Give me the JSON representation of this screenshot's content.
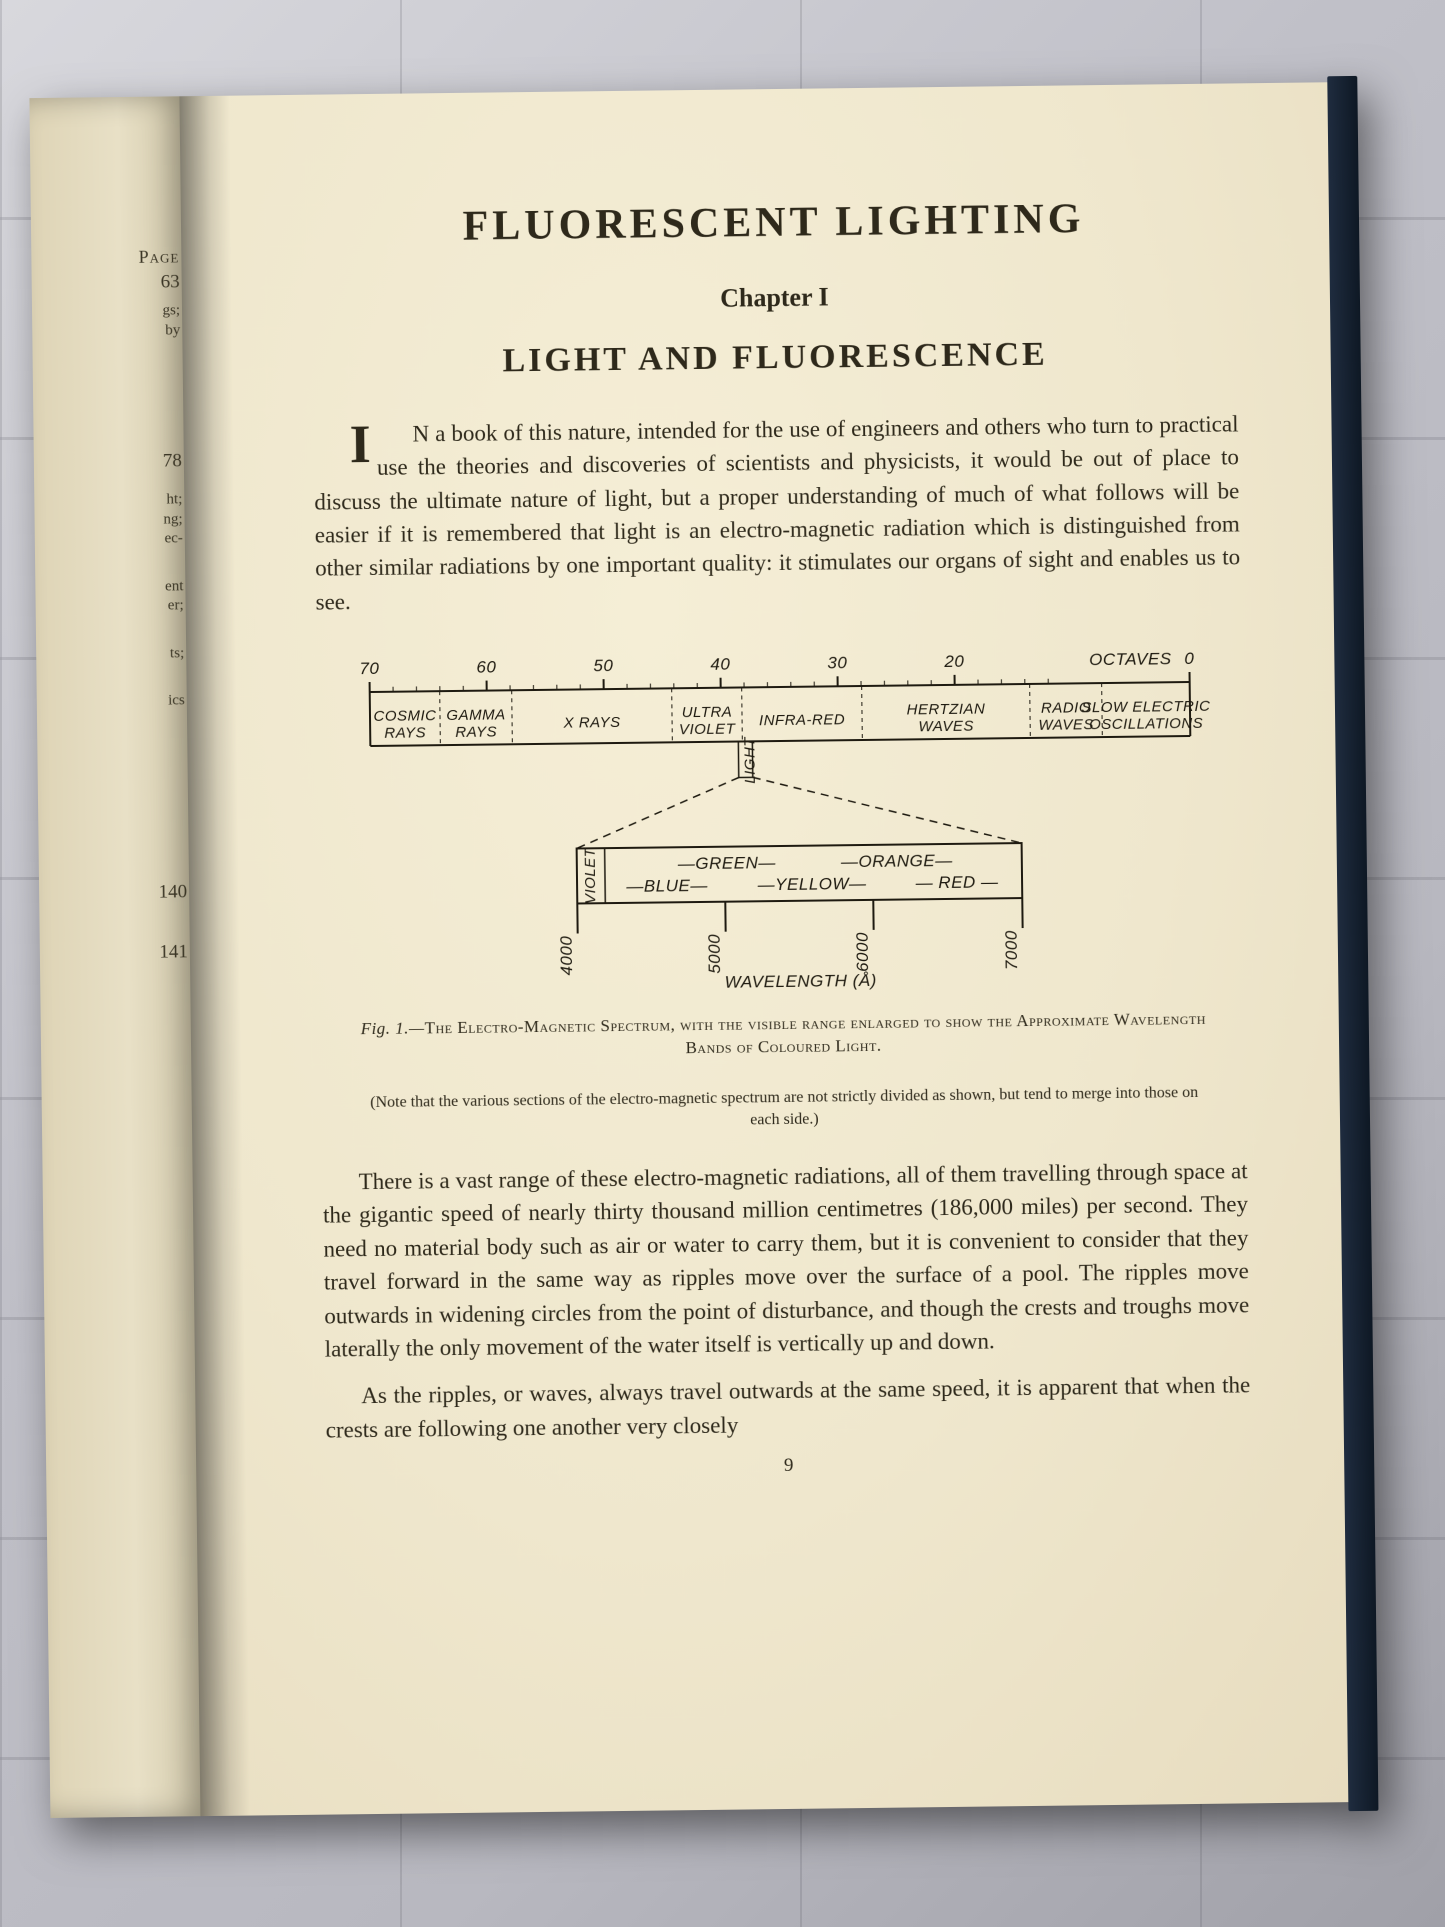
{
  "left_page": {
    "page_label": "Page",
    "entries": [
      {
        "num": "63",
        "frag": ""
      },
      {
        "num": "",
        "frag": "gs;\nby"
      },
      {
        "num": "78",
        "frag": ""
      },
      {
        "num": "",
        "frag": "ht;\nng;\nec-"
      },
      {
        "num": "",
        "frag": "ent\ner;"
      },
      {
        "num": "",
        "frag": "ts;"
      },
      {
        "num": "",
        "frag": "ics"
      },
      {
        "num": "140",
        "frag": ""
      },
      {
        "num": "141",
        "frag": ""
      }
    ]
  },
  "title": "FLUORESCENT  LIGHTING",
  "chapter": "Chapter I",
  "subtitle": "LIGHT  AND  FLUORESCENCE",
  "para1_drop": "I",
  "para1": "N a book of this nature, intended for the use of engineers and others who turn to practical use the theories and discoveries of scientists and physicists, it would be out of place to discuss the ultimate nature of light, but a proper understanding of much of what follows will be easier if it is remembered that light is an electro-magnetic radiation which is distinguished from other similar radiations by one important quality: it stimulates our organs of sight and enables us to see.",
  "figure": {
    "octaves": [
      "70",
      "60",
      "50",
      "40",
      "30",
      "20",
      "OCTAVES",
      "0"
    ],
    "bands": [
      {
        "label": "COSMIC RAYS"
      },
      {
        "label": "GAMMA RAYS"
      },
      {
        "label": "X RAYS"
      },
      {
        "label": "ULTRA VIOLET"
      },
      {
        "label": "INFRA-RED"
      },
      {
        "label": "HERTZIAN WAVES"
      },
      {
        "label": "RADIO WAVES"
      },
      {
        "label": "SLOW ELECTRIC OSCILLATIONS"
      }
    ],
    "light_tag": "LIGHT",
    "visible": {
      "ticks": [
        "4000",
        "5000",
        "6000",
        "7000"
      ],
      "colors_top": [
        "GREEN",
        "ORANGE"
      ],
      "colors_bot": [
        "BLUE",
        "YELLOW",
        "RED"
      ],
      "violet": "VIOLET",
      "axis": "WAVELENGTH  (Å)"
    },
    "stroke": "#1e1a10",
    "stroke_w": 2
  },
  "caption_lead": "Fig. 1.—",
  "caption_main": "The Electro-Magnetic Spectrum, with the visible range enlarged to show the Approximate Wavelength Bands of Coloured Light.",
  "caption_note": "(Note that the various sections of the electro-magnetic spectrum are not strictly divided as shown, but tend to merge into those on each side.)",
  "para2": "There is a vast range of these electro-magnetic radiations, all of them travelling through space at the gigantic speed of nearly thirty thousand million centimetres (186,000 miles) per second.  They need no material body such as air or water to carry them, but it is convenient to consider that they travel forward in the same way as ripples move over the surface of a pool.  The ripples move outwards in widening circles from the point of disturbance, and though the crests and troughs move laterally the only movement of the water itself is vertically up and down.",
  "para3": "As the ripples, or waves, always travel outwards at the same speed, it is apparent that when the crests are following one another very closely",
  "page_number": "9"
}
